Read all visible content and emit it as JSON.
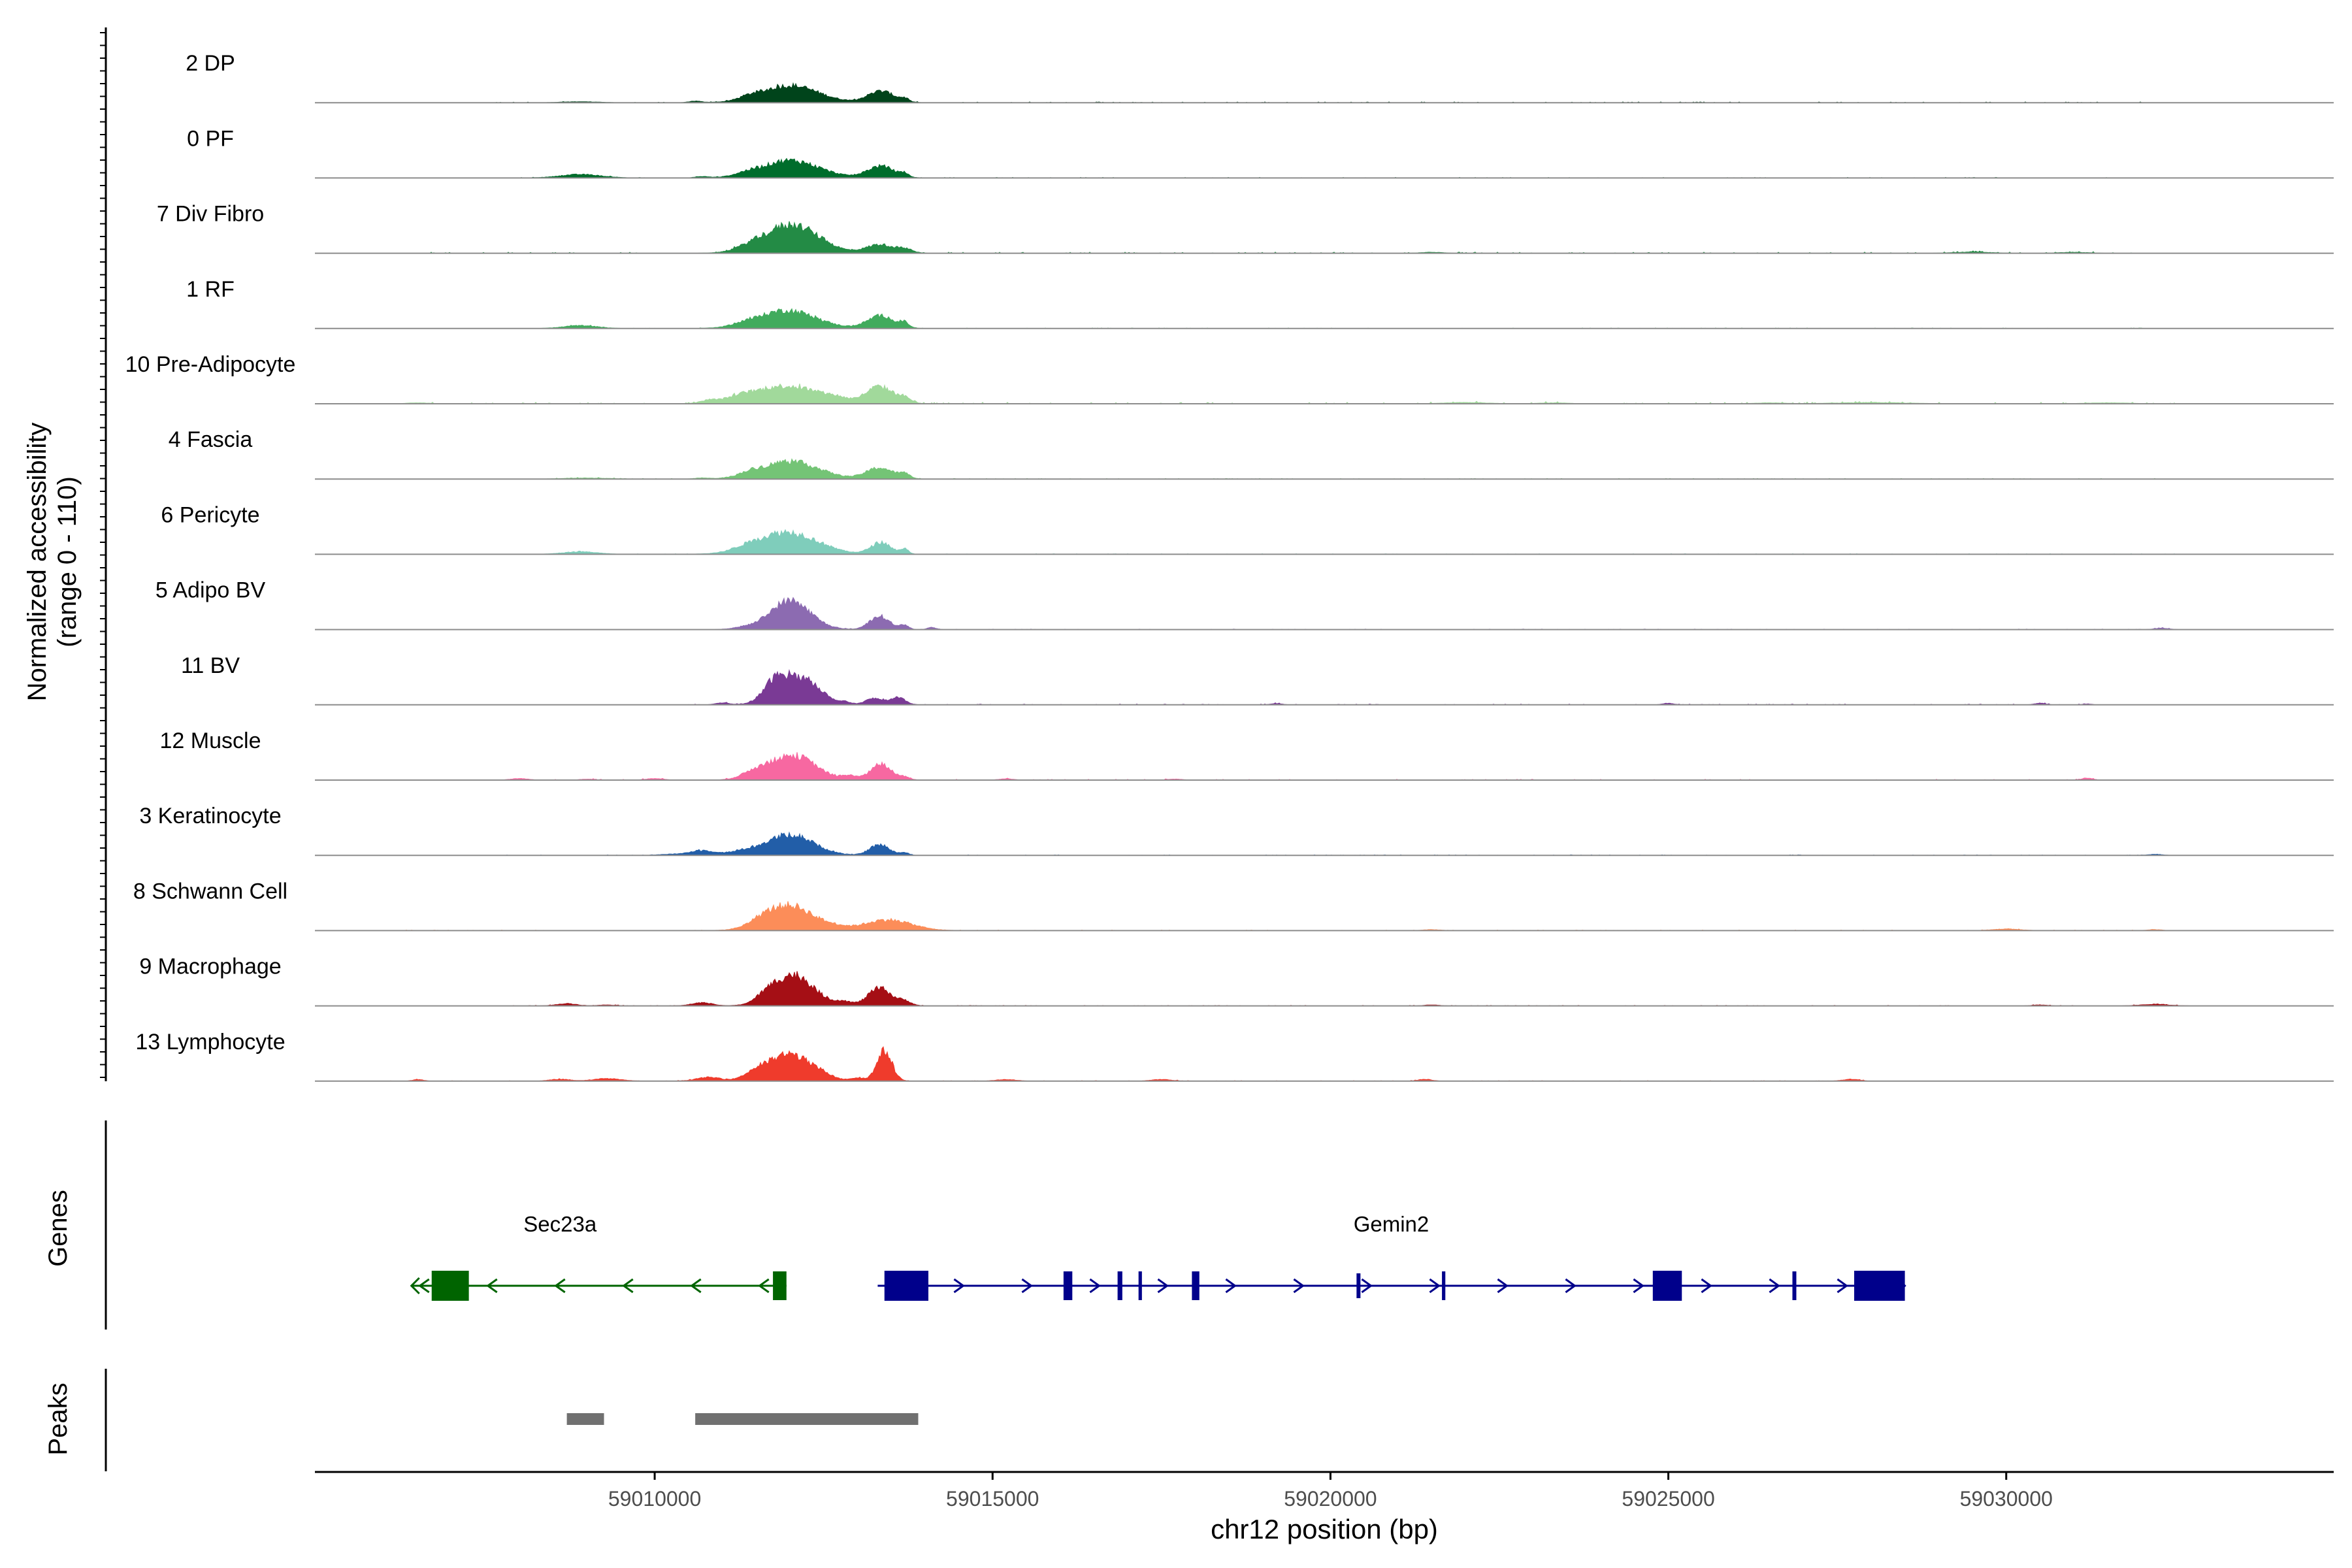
{
  "chart_data": {
    "type": "area",
    "title": "",
    "ylabel_line1": "Normalized accessibility",
    "ylabel_line2": "(range 0 - 110)",
    "yrange": [
      0,
      110
    ],
    "xlabel": "chr12 position (bp)",
    "xlim": [
      59004972,
      59034846
    ],
    "xticks": [
      59010000,
      59015000,
      59020000,
      59025000,
      59030000
    ],
    "xtick_labels": [
      "59010000",
      "59015000",
      "59020000",
      "59025000",
      "59030000"
    ],
    "tracks": [
      {
        "name": "2 DP",
        "color": "#00441b",
        "peaks": [
          [
            59012000,
            54,
            420
          ],
          [
            59013350,
            36,
            200
          ],
          [
            59013700,
            9,
            60
          ],
          [
            59011400,
            8,
            150
          ],
          [
            59008900,
            3,
            250
          ],
          [
            59010600,
            5,
            90
          ]
        ],
        "noise": [
          59006500,
          59032000
        ],
        "noiseAmp": 1.5
      },
      {
        "name": "0 PF",
        "color": "#006d2c",
        "peaks": [
          [
            59012000,
            55,
            430
          ],
          [
            59013350,
            37,
            200
          ],
          [
            59013700,
            9,
            60
          ],
          [
            59008900,
            11,
            300
          ],
          [
            59011350,
            6,
            150
          ],
          [
            59010700,
            4,
            100
          ]
        ],
        "noise": [
          59008000,
          59032000
        ],
        "noiseAmp": 1
      },
      {
        "name": "7 Div Fibro",
        "color": "#238b45",
        "peaks": [
          [
            59012020,
            90,
            400
          ],
          [
            59013330,
            27,
            200
          ],
          [
            59013700,
            11,
            120
          ],
          [
            59011400,
            10,
            200
          ],
          [
            59029500,
            4,
            250
          ],
          [
            59031000,
            3,
            200
          ],
          [
            59021500,
            3,
            150
          ]
        ],
        "noise": [
          59006600,
          59032000
        ],
        "noiseAmp": 2
      },
      {
        "name": "1 RF",
        "color": "#41ab5d",
        "peaks": [
          [
            59011950,
            57,
            430
          ],
          [
            59013350,
            40,
            200
          ],
          [
            59013700,
            14,
            60
          ],
          [
            59008900,
            9,
            250
          ],
          [
            59011300,
            6,
            150
          ]
        ],
        "noise": [
          59008500,
          59032500
        ],
        "noiseAmp": 1
      },
      {
        "name": "10 Pre-Adipocyte",
        "color": "#a1d99b",
        "peaks": [
          [
            59011950,
            56,
            500
          ],
          [
            59013330,
            53,
            200
          ],
          [
            59013700,
            15,
            100
          ],
          [
            59011250,
            10,
            200
          ],
          [
            59012700,
            8,
            150
          ],
          [
            59010800,
            8,
            120
          ],
          [
            59022000,
            4,
            300
          ],
          [
            59028000,
            4,
            500
          ],
          [
            59023300,
            3,
            200
          ],
          [
            59026500,
            3,
            200
          ],
          [
            59031500,
            3,
            300
          ],
          [
            59006500,
            3,
            150
          ]
        ],
        "noise": [
          59006400,
          59032500
        ],
        "noiseAmp": 2.5
      },
      {
        "name": "4 Fascia",
        "color": "#74c476",
        "peaks": [
          [
            59012000,
            56,
            420
          ],
          [
            59013330,
            35,
            200
          ],
          [
            59013700,
            14,
            80
          ],
          [
            59011400,
            9,
            150
          ],
          [
            59009000,
            3,
            300
          ],
          [
            59010700,
            3,
            100
          ]
        ],
        "noise": [
          59008500,
          59032500
        ],
        "noiseAmp": 1
      },
      {
        "name": "6 Pericyte",
        "color": "#7fcdbb",
        "peaks": [
          [
            59011950,
            70,
            450
          ],
          [
            59013350,
            37,
            150
          ],
          [
            59013700,
            16,
            60
          ],
          [
            59008900,
            8,
            250
          ],
          [
            59011300,
            6,
            150
          ]
        ],
        "noise": [
          59008700,
          59032500
        ],
        "noiseAmp": 1
      },
      {
        "name": "5 Adipo BV",
        "color": "#8c6bb1",
        "peaks": [
          [
            59012000,
            90,
            300
          ],
          [
            59013330,
            42,
            150
          ],
          [
            59013700,
            14,
            60
          ],
          [
            59014100,
            7,
            60
          ],
          [
            59032300,
            4,
            100
          ],
          [
            59011300,
            5,
            150
          ]
        ],
        "noise": [
          59011000,
          59032500
        ],
        "noiseAmp": 1
      },
      {
        "name": "11 BV",
        "color": "#7a3a95",
        "peaks": [
          [
            59012050,
            85,
            280
          ],
          [
            59011750,
            36,
            150
          ],
          [
            59012400,
            22,
            150
          ],
          [
            59013250,
            20,
            130
          ],
          [
            59013600,
            23,
            110
          ],
          [
            59012800,
            9,
            100
          ],
          [
            59011000,
            6,
            100
          ],
          [
            59019200,
            4,
            80
          ],
          [
            59025000,
            5,
            80
          ],
          [
            59030500,
            5,
            80
          ],
          [
            59031200,
            3,
            60
          ]
        ],
        "noise": [
          59010500,
          59031500
        ],
        "noiseAmp": 1.5
      },
      {
        "name": "12 Muscle",
        "color": "#f768a1",
        "peaks": [
          [
            59012050,
            77,
            330
          ],
          [
            59013350,
            50,
            150
          ],
          [
            59011500,
            22,
            200
          ],
          [
            59013700,
            9,
            80
          ],
          [
            59012900,
            12,
            120
          ],
          [
            59010000,
            5,
            120
          ],
          [
            59008000,
            5,
            120
          ],
          [
            59015200,
            4,
            100
          ],
          [
            59017700,
            3,
            100
          ],
          [
            59031200,
            6,
            80
          ],
          [
            59009000,
            3,
            100
          ]
        ],
        "noise": [
          59007800,
          59031500
        ],
        "noiseAmp": 1.5
      },
      {
        "name": "3 Keratinocyte",
        "color": "#225ea8",
        "peaks": [
          [
            59012000,
            65,
            350
          ],
          [
            59013330,
            33,
            150
          ],
          [
            59010700,
            15,
            200
          ],
          [
            59011300,
            10,
            200
          ],
          [
            59013700,
            8,
            60
          ],
          [
            59010200,
            3,
            150
          ],
          [
            59032200,
            3,
            100
          ]
        ],
        "noise": [
          59007800,
          59032500
        ],
        "noiseAmp": 1
      },
      {
        "name": "8 Schwann Cell",
        "color": "#fc8d59",
        "peaks": [
          [
            59012000,
            78,
            360
          ],
          [
            59013450,
            34,
            350
          ],
          [
            59011600,
            12,
            200
          ],
          [
            59012700,
            6,
            150
          ],
          [
            59030000,
            5,
            200
          ],
          [
            59032200,
            3,
            100
          ],
          [
            59021500,
            3,
            120
          ]
        ],
        "noise": [
          59006000,
          59032500
        ],
        "noiseAmp": 1
      },
      {
        "name": "9 Macrophage",
        "color": "#a50f15",
        "peaks": [
          [
            59012050,
            98,
            300
          ],
          [
            59013330,
            56,
            170
          ],
          [
            59011650,
            15,
            150
          ],
          [
            59013700,
            14,
            100
          ],
          [
            59012800,
            12,
            120
          ],
          [
            59010700,
            10,
            150
          ],
          [
            59008700,
            7,
            150
          ],
          [
            59009300,
            3,
            120
          ],
          [
            59032200,
            5,
            200
          ],
          [
            59030500,
            3,
            100
          ],
          [
            59021500,
            3,
            100
          ]
        ],
        "noise": [
          59007800,
          59032800
        ],
        "noiseAmp": 1
      },
      {
        "name": "13 Lymphocyte",
        "color": "#ef3b2c",
        "peaks": [
          [
            59012000,
            85,
            300
          ],
          [
            59013400,
            95,
            110
          ],
          [
            59011500,
            23,
            180
          ],
          [
            59012500,
            12,
            150
          ],
          [
            59013000,
            10,
            120
          ],
          [
            59010800,
            12,
            180
          ],
          [
            59009300,
            8,
            200
          ],
          [
            59008600,
            6,
            150
          ],
          [
            59015200,
            5,
            150
          ],
          [
            59017500,
            5,
            150
          ],
          [
            59021400,
            6,
            100
          ],
          [
            59027700,
            6,
            120
          ],
          [
            59006500,
            5,
            80
          ]
        ],
        "noise": [
          59006000,
          59028000
        ],
        "noiseAmp": 1
      }
    ],
    "genes_label": "Genes",
    "peaks_label": "Peaks",
    "genes": [
      {
        "name": "Sec23a",
        "color": "#006400",
        "strand": "-",
        "start": 59006400,
        "end": 59011950,
        "label_x": 59008600,
        "exons": [
          [
            59006700,
            59007250,
            "big"
          ],
          [
            59011750,
            59011950,
            "small"
          ]
        ]
      },
      {
        "name": "Gemin2",
        "color": "#00008b",
        "strand": "+",
        "start": 59013300,
        "end": 59028500,
        "label_x": 59020900,
        "exons": [
          [
            59013400,
            59014050,
            "big"
          ],
          [
            59016050,
            59016180,
            "small"
          ],
          [
            59016850,
            59016920,
            "small"
          ],
          [
            59017160,
            59017210,
            "small"
          ],
          [
            59017950,
            59018060,
            "small"
          ],
          [
            59020400,
            59020430,
            "thin"
          ],
          [
            59021650,
            59021700,
            "small"
          ],
          [
            59024770,
            59025200,
            "big"
          ],
          [
            59026850,
            59026880,
            "small"
          ],
          [
            59027750,
            59028500,
            "big"
          ]
        ]
      }
    ],
    "peak_regions": [
      [
        59008700,
        59009250
      ],
      [
        59010600,
        59013900
      ]
    ]
  }
}
